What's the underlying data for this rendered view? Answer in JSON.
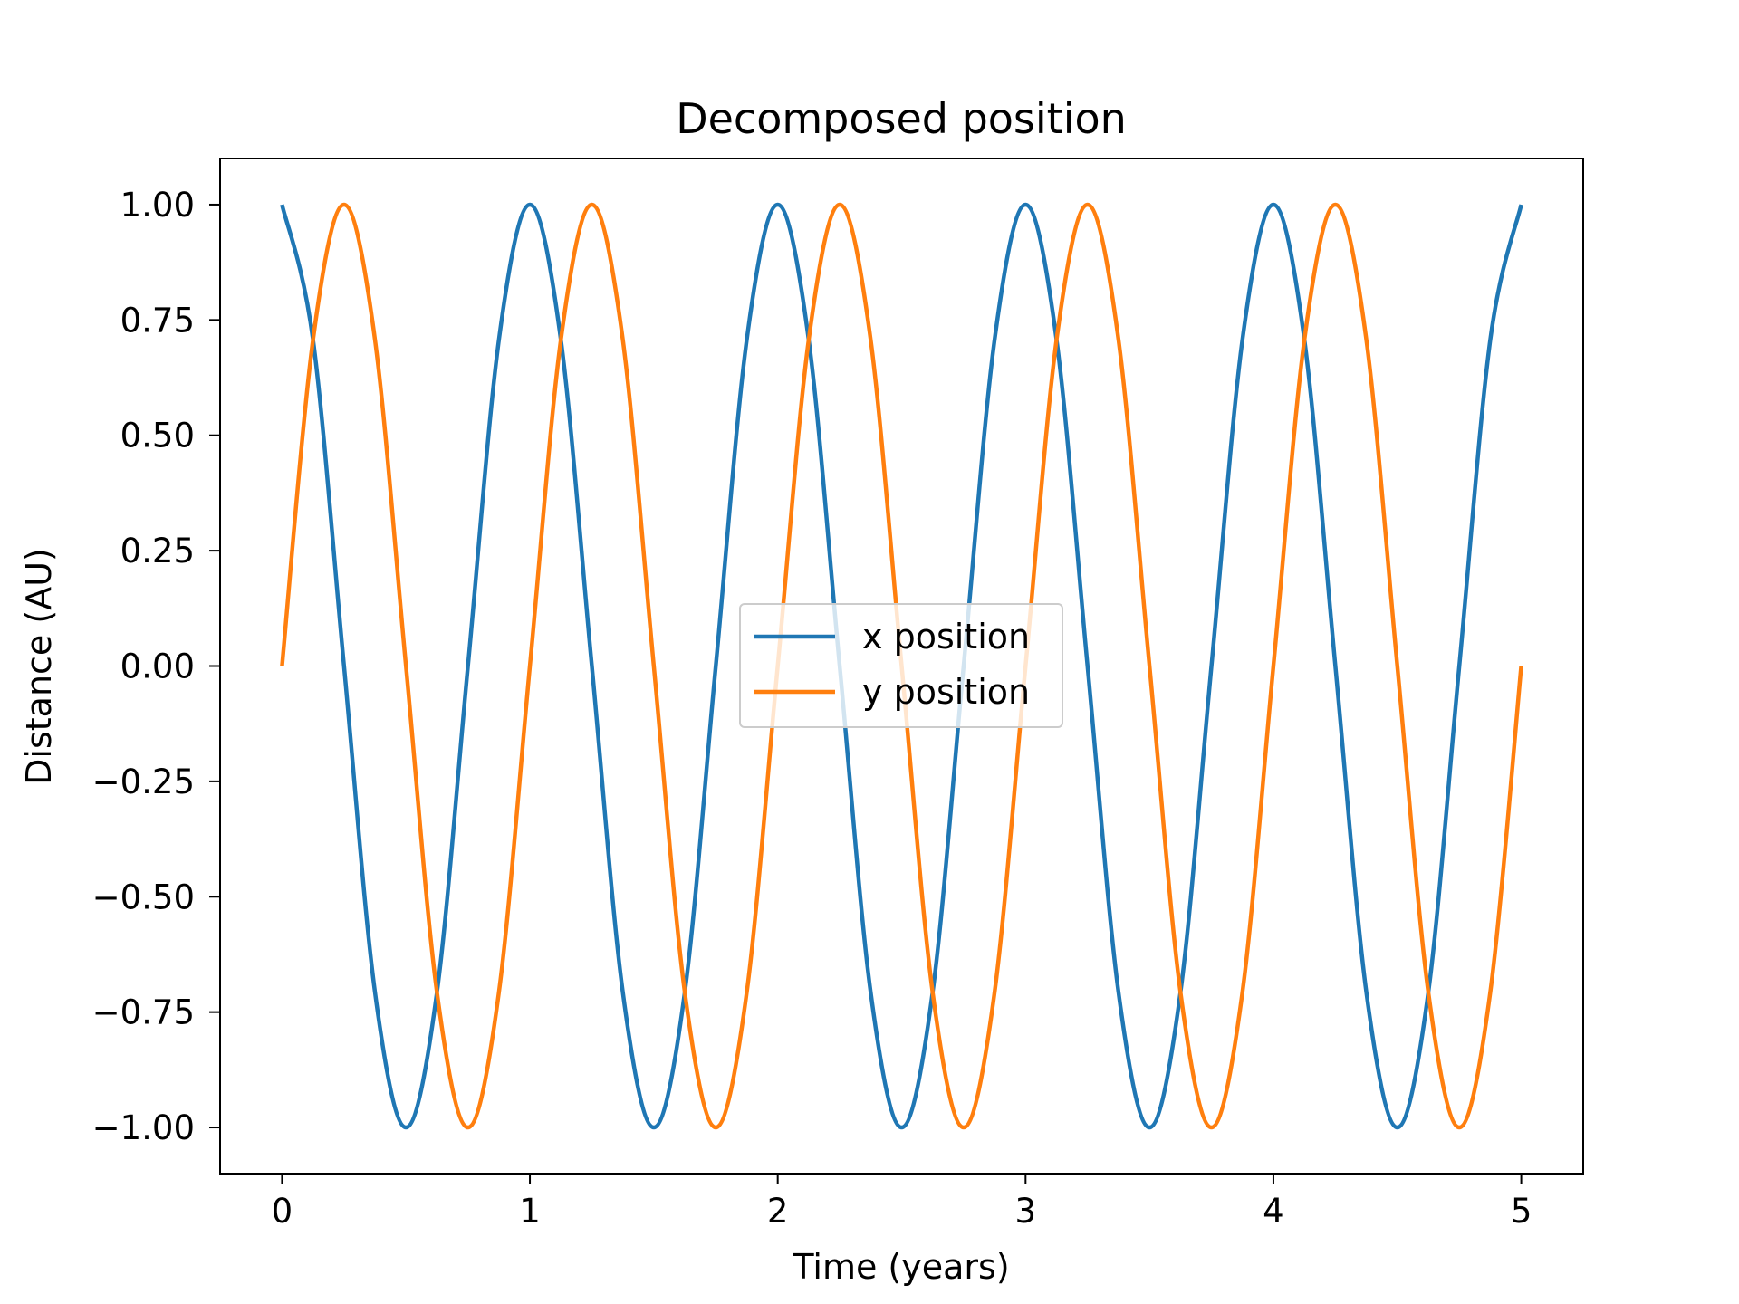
{
  "chart_data": {
    "type": "line",
    "title": "Decomposed position",
    "xlabel": "Time (years)",
    "ylabel": "Distance (AU)",
    "xlim": [
      -0.25,
      5.25
    ],
    "ylim": [
      -1.1,
      1.1
    ],
    "x_ticks": [
      0,
      1,
      2,
      3,
      4,
      5
    ],
    "x_tick_labels": [
      "0",
      "1",
      "2",
      "3",
      "4",
      "5"
    ],
    "y_ticks": [
      1.0,
      0.75,
      0.5,
      0.25,
      0.0,
      -0.25,
      -0.5,
      -0.75,
      -1.0
    ],
    "y_tick_labels": [
      "1.00",
      "0.75",
      "0.50",
      "0.25",
      "0.00",
      "−0.25",
      "−0.50",
      "−0.75",
      "−1.00"
    ],
    "grid": false,
    "legend_position": "center",
    "series": [
      {
        "name": "x position",
        "color": "#1f77b4",
        "x": [
          0,
          0.125,
          0.25,
          0.375,
          0.5,
          0.625,
          0.75,
          0.875,
          1,
          1.125,
          1.25,
          1.375,
          1.5,
          1.625,
          1.75,
          1.875,
          2,
          2.125,
          2.25,
          2.375,
          2.5,
          2.625,
          2.75,
          2.875,
          3,
          3.125,
          3.25,
          3.375,
          3.5,
          3.625,
          3.75,
          3.875,
          4,
          4.125,
          4.25,
          4.375,
          4.5,
          4.625,
          4.75,
          4.875,
          5
        ],
        "y": [
          1.0,
          0.707,
          0.0,
          -0.707,
          -1.0,
          -0.707,
          0.0,
          0.707,
          1.0,
          0.707,
          0.0,
          -0.707,
          -1.0,
          -0.707,
          0.0,
          0.707,
          1.0,
          0.707,
          0.0,
          -0.707,
          -1.0,
          -0.707,
          0.0,
          0.707,
          1.0,
          0.707,
          0.0,
          -0.707,
          -1.0,
          -0.707,
          0.0,
          0.707,
          1.0,
          0.707,
          0.0,
          -0.707,
          -1.0,
          -0.707,
          0.0,
          0.707,
          1.0
        ]
      },
      {
        "name": "y position",
        "color": "#ff7f0e",
        "x": [
          0,
          0.125,
          0.25,
          0.375,
          0.5,
          0.625,
          0.75,
          0.875,
          1,
          1.125,
          1.25,
          1.375,
          1.5,
          1.625,
          1.75,
          1.875,
          2,
          2.125,
          2.25,
          2.375,
          2.5,
          2.625,
          2.75,
          2.875,
          3,
          3.125,
          3.25,
          3.375,
          3.5,
          3.625,
          3.75,
          3.875,
          4,
          4.125,
          4.25,
          4.375,
          4.5,
          4.625,
          4.75,
          4.875,
          5
        ],
        "y": [
          0.0,
          0.707,
          1.0,
          0.707,
          0.0,
          -0.707,
          -1.0,
          -0.707,
          0.0,
          0.707,
          1.0,
          0.707,
          0.0,
          -0.707,
          -1.0,
          -0.707,
          0.0,
          0.707,
          1.0,
          0.707,
          0.0,
          -0.707,
          -1.0,
          -0.707,
          0.0,
          0.707,
          1.0,
          0.707,
          0.0,
          -0.707,
          -1.0,
          -0.707,
          0.0,
          0.707,
          1.0,
          0.707,
          0.0,
          -0.707,
          -1.0,
          -0.707,
          0.0
        ]
      }
    ]
  }
}
